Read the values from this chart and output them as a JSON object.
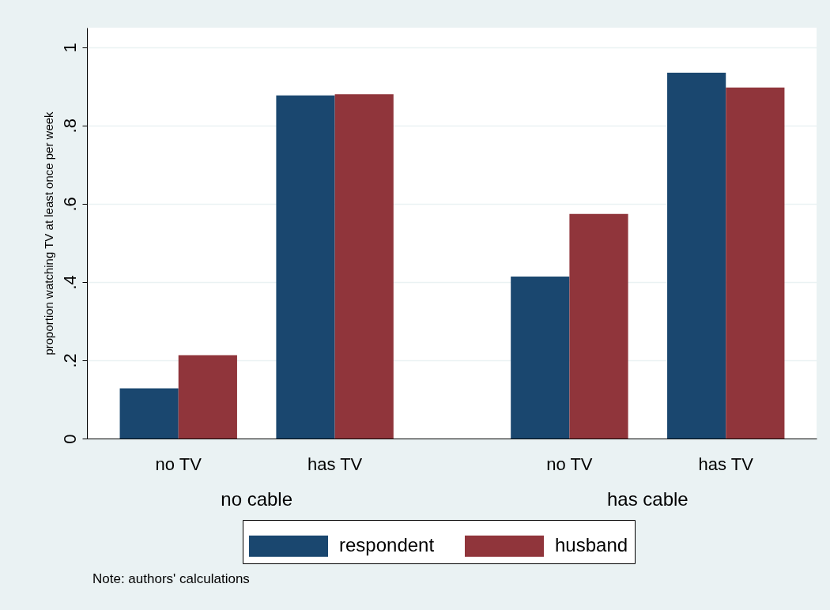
{
  "chart_data": {
    "type": "bar",
    "ylabel": "proportion watching TV at least once per week",
    "categories": [
      "no TV",
      "has TV",
      "no TV",
      "has TV"
    ],
    "series": [
      {
        "name": "respondent",
        "color": "#1a476f",
        "values": [
          0.128,
          0.877,
          0.414,
          0.935
        ]
      },
      {
        "name": "husband",
        "color": "#90353b",
        "values": [
          0.213,
          0.88,
          0.574,
          0.897
        ]
      }
    ],
    "ylim": [
      0,
      1.05
    ],
    "yticks": [
      0,
      {
        "value": 0.2,
        "label": ".2"
      },
      {
        "value": 0.4,
        "label": ".4"
      },
      {
        "value": 0.6,
        "label": ".6"
      },
      {
        "value": 0.8,
        "label": ".8"
      },
      1
    ],
    "grid": "y",
    "legend": "bottom",
    "annotations": [
      "no cable",
      "has cable",
      "Note: authors' calculations"
    ]
  }
}
